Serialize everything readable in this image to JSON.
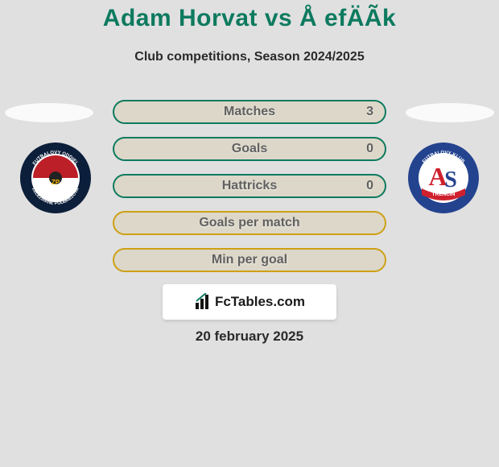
{
  "title": "Adam Horvat vs Å efÄÃ­k",
  "subtitle": "Club competitions, Season 2024/2025",
  "date": "20 february 2025",
  "brand": {
    "name": "FcTables",
    "domain": ".com"
  },
  "background_color": "#e0e0e0",
  "title_color": "#0d7a5f",
  "stat_pill": {
    "fill": "#dcd7c8",
    "border_color_stat": "#0d7a5f",
    "border_color_derived": "#cda015",
    "label_color": "#606060",
    "height": 30,
    "radius": 16,
    "gap": 16
  },
  "stats": [
    {
      "label": "Matches",
      "value": "3",
      "type": "stat"
    },
    {
      "label": "Goals",
      "value": "0",
      "type": "stat"
    },
    {
      "label": "Hattricks",
      "value": "0",
      "type": "stat"
    },
    {
      "label": "Goals per match",
      "value": "",
      "type": "derived"
    },
    {
      "label": "Min per goal",
      "value": "",
      "type": "derived"
    }
  ],
  "clubs": {
    "left": {
      "name": "Zeleziarne Podbrezova",
      "crest": {
        "outer_ring": "#0b1e3a",
        "mid_ring": "#ffffff",
        "top_half": "#bc1f28",
        "bottom_half": "#ffffff",
        "inner_dot": "#222222",
        "text_color": "#ffffff"
      }
    },
    "right": {
      "name": "AS Trencin",
      "crest": {
        "outer_ring": "#24438f",
        "mid_ring": "#ffffff",
        "center_bg": "#ffffff",
        "ribbon": "#cf202e",
        "letter_a": "#cf202e",
        "letter_s": "#24438f",
        "text_color": "#ffffff"
      }
    }
  }
}
